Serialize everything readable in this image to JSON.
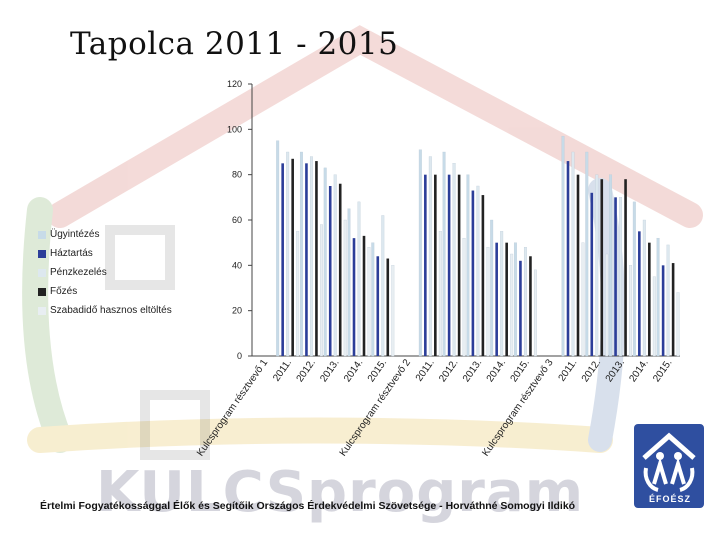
{
  "title": "Tapolca 2011 - 2015",
  "legend": [
    {
      "label": "Ügyintézés",
      "color": "#c7dbe8"
    },
    {
      "label": "Háztartás",
      "color": "#2c3e99"
    },
    {
      "label": "Pénzkezelés",
      "color": "#dde8ef"
    },
    {
      "label": "Főzés",
      "color": "#222222"
    },
    {
      "label": "Szabadidő hasznos eltöltés",
      "color": "#e8eef2"
    }
  ],
  "footer": {
    "logo_text": "KULCSprogram",
    "credit": "Értelmi Fogyatékossággal Élők és Segítőik Országos Érdekvédelmi Szövetsége - Horváthné Somogyi Ildikó",
    "org_logo_label": "ÉFOÉSZ"
  },
  "chart_data": {
    "type": "bar",
    "ylim": [
      0,
      120
    ],
    "yticks": [
      0,
      20,
      40,
      60,
      80,
      100,
      120
    ],
    "grid": false,
    "legend_position": "left",
    "categories": [
      "Kulcsprogram résztvevő 1",
      "2011.",
      "2012.",
      "2013.",
      "2014.",
      "2015.",
      "Kulcsprogram résztvevő 2",
      "2011.",
      "2012.",
      "2013.",
      "2014.",
      "2015.",
      "Kulcsprogram résztvevő 3",
      "2011.",
      "2012.",
      "2013.",
      "2014.",
      "2015."
    ],
    "series": [
      {
        "name": "Ügyintézés",
        "color": "#c7dbe8",
        "values": [
          null,
          95,
          90,
          83,
          65,
          50,
          null,
          91,
          90,
          80,
          60,
          50,
          null,
          97,
          90,
          80,
          68,
          52
        ]
      },
      {
        "name": "Háztartás",
        "color": "#2c3e99",
        "values": [
          null,
          85,
          85,
          75,
          52,
          44,
          null,
          80,
          80,
          73,
          50,
          42,
          null,
          86,
          72,
          70,
          55,
          40
        ]
      },
      {
        "name": "Pénzkezelés",
        "color": "#dde8ef",
        "values": [
          null,
          90,
          88,
          80,
          68,
          62,
          null,
          88,
          85,
          75,
          55,
          48,
          null,
          90,
          80,
          70,
          60,
          49
        ]
      },
      {
        "name": "Főzés",
        "color": "#222222",
        "values": [
          null,
          87,
          86,
          76,
          53,
          43,
          null,
          80,
          80,
          71,
          50,
          44,
          null,
          80,
          78,
          78,
          50,
          41
        ]
      },
      {
        "name": "Szabadidő hasznos eltöltés",
        "color": "#e8eef2",
        "values": [
          null,
          55,
          58,
          60,
          48,
          40,
          null,
          55,
          52,
          48,
          45,
          38,
          null,
          50,
          45,
          40,
          35,
          28
        ]
      }
    ]
  }
}
